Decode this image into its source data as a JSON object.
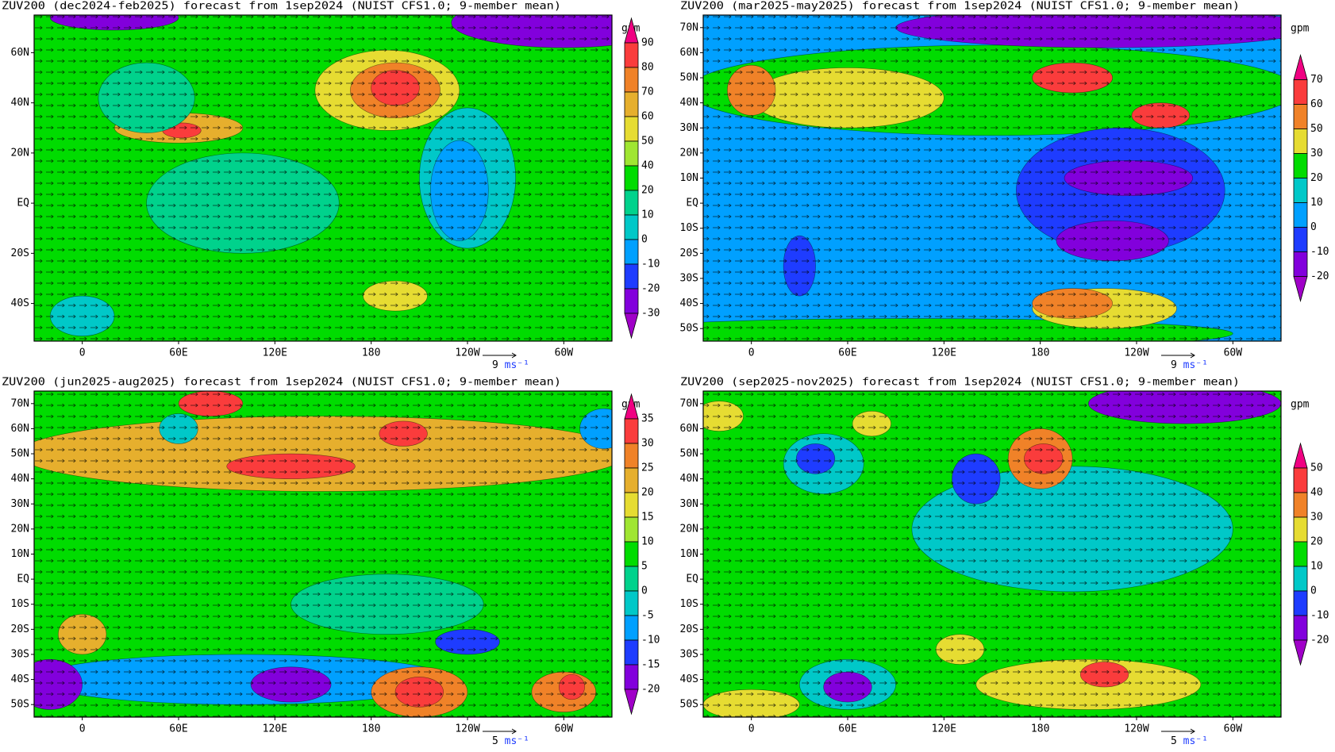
{
  "panels": [
    {
      "title": "ZUV200 (dec2024-feb2025) forecast from 1sep2024 (NUIST CFS1.0; 9-member mean)",
      "unit": "gpm",
      "levels": [
        -30,
        -20,
        -10,
        0,
        10,
        20,
        40,
        50,
        60,
        70,
        80,
        90
      ],
      "colors": [
        "#a000c8",
        "#8200dc",
        "#1e3cff",
        "#00a0ff",
        "#00c8c8",
        "#00d28c",
        "#00dc00",
        "#a0e632",
        "#e6dc32",
        "#e6af2d",
        "#f08228",
        "#fa3c3c",
        "#f00082"
      ],
      "xlim": [
        -30,
        330
      ],
      "ylim": [
        -55,
        75
      ],
      "xticks": [
        0,
        {
          "value": 60,
          "label": "60E"
        },
        {
          "value": 120,
          "label": "120E"
        },
        180,
        {
          "value": 240,
          "label": "120W"
        },
        {
          "value": 300,
          "label": "60W"
        }
      ],
      "yticks": [
        {
          "value": -40,
          "label": "40S"
        },
        {
          "value": -20,
          "label": "20S"
        },
        {
          "value": 0,
          "label": "EQ"
        },
        {
          "value": 20,
          "label": "20N"
        },
        {
          "value": 40,
          "label": "40N"
        },
        {
          "value": 60,
          "label": "60N"
        }
      ],
      "background": 30,
      "field": [
        {
          "lon": 100,
          "lat": 0,
          "rx": 60,
          "ry": 20,
          "value": 15
        },
        {
          "lon": 190,
          "lat": 45,
          "rx": 45,
          "ry": 16,
          "value": 55
        },
        {
          "lon": 195,
          "lat": 45,
          "rx": 28,
          "ry": 11,
          "value": 75
        },
        {
          "lon": 195,
          "lat": 46,
          "rx": 15,
          "ry": 7,
          "value": 85
        },
        {
          "lon": 60,
          "lat": 30,
          "rx": 40,
          "ry": 6,
          "value": 65
        },
        {
          "lon": 62,
          "lat": 29,
          "rx": 12,
          "ry": 3,
          "value": 85
        },
        {
          "lon": 40,
          "lat": 42,
          "rx": 30,
          "ry": 14,
          "value": 15
        },
        {
          "lon": 240,
          "lat": 10,
          "rx": 30,
          "ry": 28,
          "value": 5
        },
        {
          "lon": 235,
          "lat": 5,
          "rx": 18,
          "ry": 20,
          "value": -5
        },
        {
          "lon": 300,
          "lat": 72,
          "rx": 70,
          "ry": 10,
          "value": -25
        },
        {
          "lon": 20,
          "lat": 74,
          "rx": 40,
          "ry": 5,
          "value": -25
        },
        {
          "lon": 0,
          "lat": -45,
          "rx": 20,
          "ry": 8,
          "value": 5
        },
        {
          "lon": 195,
          "lat": -37,
          "rx": 20,
          "ry": 6,
          "value": 55
        }
      ],
      "ref_vector": {
        "value": 9,
        "unit": "ms⁻¹"
      }
    },
    {
      "title": "ZUV200 (mar2025-may2025) forecast from 1sep2024 (NUIST CFS1.0; 9-member mean)",
      "unit": "gpm",
      "levels": [
        -20,
        -10,
        0,
        10,
        20,
        30,
        50,
        60,
        70
      ],
      "colors": [
        "#a000c8",
        "#8200dc",
        "#1e3cff",
        "#00a0ff",
        "#00c8c8",
        "#00dc00",
        "#e6dc32",
        "#f08228",
        "#fa3c3c",
        "#f00082"
      ],
      "xlim": [
        -30,
        330
      ],
      "ylim": [
        -55,
        75
      ],
      "xticks": [
        0,
        {
          "value": 60,
          "label": "60E"
        },
        {
          "value": 120,
          "label": "120E"
        },
        180,
        {
          "value": 240,
          "label": "120W"
        },
        {
          "value": 300,
          "label": "60W"
        }
      ],
      "yticks": [
        {
          "value": -50,
          "label": "50S"
        },
        {
          "value": -40,
          "label": "40S"
        },
        {
          "value": -30,
          "label": "30S"
        },
        {
          "value": -20,
          "label": "20S"
        },
        {
          "value": -10,
          "label": "10S"
        },
        {
          "value": 0,
          "label": "EQ"
        },
        {
          "value": 10,
          "label": "10N"
        },
        {
          "value": 20,
          "label": "20N"
        },
        {
          "value": 30,
          "label": "30N"
        },
        {
          "value": 40,
          "label": "40N"
        },
        {
          "value": 50,
          "label": "50N"
        },
        {
          "value": 60,
          "label": "60N"
        },
        {
          "value": 70,
          "label": "70N"
        }
      ],
      "background": 5,
      "field": [
        {
          "lon": 150,
          "lat": 45,
          "rx": 190,
          "ry": 18,
          "value": 25
        },
        {
          "lon": 60,
          "lat": 42,
          "rx": 60,
          "ry": 12,
          "value": 35
        },
        {
          "lon": 200,
          "lat": 50,
          "rx": 25,
          "ry": 6,
          "value": 65
        },
        {
          "lon": 255,
          "lat": 35,
          "rx": 18,
          "ry": 5,
          "value": 65
        },
        {
          "lon": 0,
          "lat": 45,
          "rx": 15,
          "ry": 10,
          "value": 55
        },
        {
          "lon": 220,
          "lat": 70,
          "rx": 130,
          "ry": 8,
          "value": -15
        },
        {
          "lon": 230,
          "lat": 5,
          "rx": 65,
          "ry": 25,
          "value": -5
        },
        {
          "lon": 235,
          "lat": 10,
          "rx": 40,
          "ry": 7,
          "value": -15
        },
        {
          "lon": 225,
          "lat": -15,
          "rx": 35,
          "ry": 8,
          "value": -15
        },
        {
          "lon": 100,
          "lat": -52,
          "rx": 200,
          "ry": 6,
          "value": 25
        },
        {
          "lon": 220,
          "lat": -42,
          "rx": 45,
          "ry": 8,
          "value": 35
        },
        {
          "lon": 200,
          "lat": -40,
          "rx": 25,
          "ry": 6,
          "value": 55
        },
        {
          "lon": 30,
          "lat": -25,
          "rx": 10,
          "ry": 12,
          "value": -5
        }
      ],
      "ref_vector": {
        "value": 9,
        "unit": "ms⁻¹"
      }
    },
    {
      "title": "ZUV200 (jun2025-aug2025) forecast from 1sep2024 (NUIST CFS1.0; 9-member mean)",
      "unit": "gpm",
      "levels": [
        -20,
        -15,
        -10,
        -5,
        0,
        5,
        10,
        15,
        20,
        25,
        30,
        35
      ],
      "colors": [
        "#a000c8",
        "#8200dc",
        "#1e3cff",
        "#00a0ff",
        "#00c8c8",
        "#00d28c",
        "#00dc00",
        "#a0e632",
        "#e6dc32",
        "#e6af2d",
        "#f08228",
        "#fa3c3c",
        "#f00082"
      ],
      "xlim": [
        -30,
        330
      ],
      "ylim": [
        -55,
        75
      ],
      "xticks": [
        0,
        {
          "value": 60,
          "label": "60E"
        },
        {
          "value": 120,
          "label": "120E"
        },
        180,
        {
          "value": 240,
          "label": "120W"
        },
        {
          "value": 300,
          "label": "60W"
        }
      ],
      "yticks": [
        {
          "value": -50,
          "label": "50S"
        },
        {
          "value": -40,
          "label": "40S"
        },
        {
          "value": -30,
          "label": "30S"
        },
        {
          "value": -20,
          "label": "20S"
        },
        {
          "value": -10,
          "label": "10S"
        },
        {
          "value": 0,
          "label": "EQ"
        },
        {
          "value": 10,
          "label": "10N"
        },
        {
          "value": 20,
          "label": "20N"
        },
        {
          "value": 30,
          "label": "30N"
        },
        {
          "value": 40,
          "label": "40N"
        },
        {
          "value": 50,
          "label": "50N"
        },
        {
          "value": 60,
          "label": "60N"
        },
        {
          "value": 70,
          "label": "70N"
        }
      ],
      "background": 7,
      "field": [
        {
          "lon": 150,
          "lat": 50,
          "rx": 190,
          "ry": 15,
          "value": 22
        },
        {
          "lon": 130,
          "lat": 45,
          "rx": 40,
          "ry": 5,
          "value": 32
        },
        {
          "lon": 200,
          "lat": 58,
          "rx": 15,
          "ry": 5,
          "value": 32
        },
        {
          "lon": 80,
          "lat": 70,
          "rx": 20,
          "ry": 5,
          "value": 32
        },
        {
          "lon": 60,
          "lat": 60,
          "rx": 12,
          "ry": 6,
          "value": -2
        },
        {
          "lon": 325,
          "lat": 60,
          "rx": 15,
          "ry": 8,
          "value": -7
        },
        {
          "lon": 0,
          "lat": -22,
          "rx": 15,
          "ry": 8,
          "value": 22
        },
        {
          "lon": 190,
          "lat": -10,
          "rx": 60,
          "ry": 12,
          "value": 2
        },
        {
          "lon": 100,
          "lat": -40,
          "rx": 130,
          "ry": 10,
          "value": -7
        },
        {
          "lon": -20,
          "lat": -42,
          "rx": 20,
          "ry": 10,
          "value": -17
        },
        {
          "lon": 130,
          "lat": -42,
          "rx": 25,
          "ry": 7,
          "value": -17
        },
        {
          "lon": 240,
          "lat": -25,
          "rx": 20,
          "ry": 5,
          "value": -12
        },
        {
          "lon": 210,
          "lat": -45,
          "rx": 30,
          "ry": 10,
          "value": 27
        },
        {
          "lon": 210,
          "lat": -45,
          "rx": 15,
          "ry": 6,
          "value": 33
        },
        {
          "lon": 300,
          "lat": -45,
          "rx": 20,
          "ry": 8,
          "value": 27
        },
        {
          "lon": 305,
          "lat": -43,
          "rx": 8,
          "ry": 5,
          "value": 33
        }
      ],
      "ref_vector": {
        "value": 5,
        "unit": "ms⁻¹"
      }
    },
    {
      "title": "ZUV200 (sep2025-nov2025) forecast from 1sep2024 (NUIST CFS1.0; 9-member mean)",
      "unit": "gpm",
      "levels": [
        -20,
        -10,
        0,
        10,
        20,
        30,
        40,
        50
      ],
      "colors": [
        "#a000c8",
        "#8200dc",
        "#1e3cff",
        "#00c8c8",
        "#00dc00",
        "#e6dc32",
        "#f08228",
        "#fa3c3c",
        "#f00082"
      ],
      "xlim": [
        -30,
        330
      ],
      "ylim": [
        -55,
        75
      ],
      "xticks": [
        0,
        {
          "value": 60,
          "label": "60E"
        },
        {
          "value": 120,
          "label": "120E"
        },
        180,
        {
          "value": 240,
          "label": "120W"
        },
        {
          "value": 300,
          "label": "60W"
        }
      ],
      "yticks": [
        {
          "value": -50,
          "label": "50S"
        },
        {
          "value": -40,
          "label": "40S"
        },
        {
          "value": -30,
          "label": "30S"
        },
        {
          "value": -20,
          "label": "20S"
        },
        {
          "value": -10,
          "label": "10S"
        },
        {
          "value": 0,
          "label": "EQ"
        },
        {
          "value": 10,
          "label": "10N"
        },
        {
          "value": 20,
          "label": "20N"
        },
        {
          "value": 30,
          "label": "30N"
        },
        {
          "value": 40,
          "label": "40N"
        },
        {
          "value": 50,
          "label": "50N"
        },
        {
          "value": 60,
          "label": "60N"
        },
        {
          "value": 70,
          "label": "70N"
        }
      ],
      "background": 15,
      "field": [
        {
          "lon": 200,
          "lat": 20,
          "rx": 100,
          "ry": 25,
          "value": 5
        },
        {
          "lon": 180,
          "lat": 48,
          "rx": 20,
          "ry": 12,
          "value": 35
        },
        {
          "lon": 182,
          "lat": 48,
          "rx": 12,
          "ry": 6,
          "value": 45
        },
        {
          "lon": 270,
          "lat": 70,
          "rx": 60,
          "ry": 8,
          "value": -15
        },
        {
          "lon": 45,
          "lat": 46,
          "rx": 25,
          "ry": 12,
          "value": 5
        },
        {
          "lon": 40,
          "lat": 48,
          "rx": 12,
          "ry": 6,
          "value": -5
        },
        {
          "lon": 140,
          "lat": 40,
          "rx": 15,
          "ry": 10,
          "value": -5
        },
        {
          "lon": 210,
          "lat": -42,
          "rx": 70,
          "ry": 10,
          "value": 25
        },
        {
          "lon": 220,
          "lat": -38,
          "rx": 15,
          "ry": 5,
          "value": 45
        },
        {
          "lon": 60,
          "lat": -42,
          "rx": 30,
          "ry": 10,
          "value": 5
        },
        {
          "lon": 60,
          "lat": -43,
          "rx": 15,
          "ry": 6,
          "value": -15
        },
        {
          "lon": 130,
          "lat": -28,
          "rx": 15,
          "ry": 6,
          "value": 25
        },
        {
          "lon": 0,
          "lat": -50,
          "rx": 30,
          "ry": 6,
          "value": 25
        },
        {
          "lon": -20,
          "lat": 65,
          "rx": 15,
          "ry": 6,
          "value": 25
        },
        {
          "lon": 75,
          "lat": 62,
          "rx": 12,
          "ry": 5,
          "value": 25
        }
      ],
      "ref_vector": {
        "value": 5,
        "unit": "ms⁻¹"
      }
    }
  ]
}
